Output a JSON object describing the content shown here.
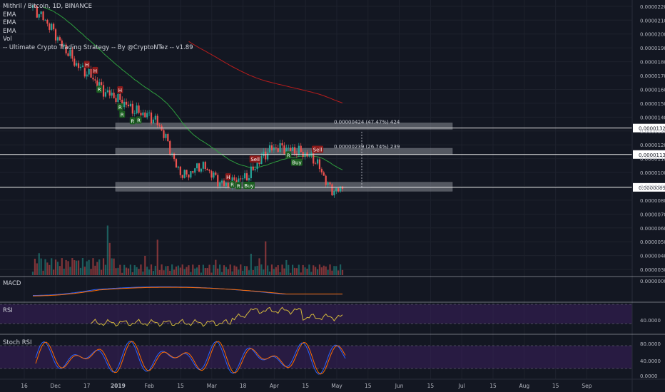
{
  "legend": {
    "title": "Mithril / Bitcoin, 1D, BINANCE",
    "ema1": "EMA",
    "ema2": "EMA",
    "ema3": "EMA",
    "vol": "Vol",
    "strategy": "-- Ultimate Crypto Trading Strategy -- By @CryptoNTez -- v1.89"
  },
  "panes": {
    "macd": "MACD",
    "rsi": "RSI",
    "stoch": "Stoch RSI"
  },
  "colors": {
    "background": "#131722",
    "up": "#26a69a",
    "down": "#ef5350",
    "ema_fast": "#2e9e3e",
    "ema_slow": "#b71c1c",
    "macd": "#2962ff",
    "signal": "#ff6d00",
    "rsi": "#d4b93c",
    "band": "#3b1f5c",
    "zone": "#9598a1"
  },
  "chart_data": {
    "type": "candlestick",
    "title": "Mithril / Bitcoin, 1D, BINANCE",
    "x_ticks": [
      "16",
      "Dec",
      "17",
      "2019",
      "Feb",
      "15",
      "Mar",
      "18",
      "Apr",
      "15",
      "May",
      "15",
      "Jun",
      "15",
      "Jul",
      "15",
      "Aug",
      "15",
      "Sep"
    ],
    "y_ticks": [
      "0.00000300",
      "0.00000400",
      "0.00000500",
      "0.00000600",
      "0.00000700",
      "0.00000800",
      "0.00000900",
      "0.00001000",
      "0.00001100",
      "0.00001200",
      "0.00001300",
      "0.00001400",
      "0.00001500",
      "0.00001600",
      "0.00001700",
      "0.00001800",
      "0.00001900",
      "0.00002000",
      "0.00002100",
      "0.00002200"
    ],
    "ylim": [
      2.8e-06,
      2.23e-05
    ],
    "price_levels": [
      "0.00001321",
      "0.00001130",
      "0.00000893"
    ],
    "zones": [
      {
        "low": 8.65e-06,
        "high": 9.3e-06
      },
      {
        "low": 1.13e-05,
        "high": 1.175e-05
      },
      {
        "low": 1.312e-05,
        "high": 1.358e-05
      }
    ],
    "measurements": [
      "0.00000424 (47.47%) 424",
      "0.00000239 (26.74%) 239"
    ],
    "signals": [
      {
        "label": "H",
        "type": "H"
      },
      {
        "label": "H",
        "type": "H"
      },
      {
        "label": "R",
        "type": "R"
      },
      {
        "label": "R",
        "type": "R"
      },
      {
        "label": "H",
        "type": "H"
      },
      {
        "label": "R",
        "type": "R"
      },
      {
        "label": "R",
        "type": "R"
      },
      {
        "label": "R",
        "type": "R"
      },
      {
        "label": "H",
        "type": "H"
      },
      {
        "label": "R",
        "type": "R"
      },
      {
        "label": "R",
        "type": "R"
      },
      {
        "label": "Buy",
        "type": "Buy"
      },
      {
        "label": "Sell",
        "type": "Sell"
      },
      {
        "label": "R",
        "type": "R"
      },
      {
        "label": "Buy",
        "type": "Buy"
      },
      {
        "label": "Sell",
        "type": "Sell"
      }
    ],
    "macd_ticks": [
      "0.0000000"
    ],
    "rsi_ticks": [
      "40.0000"
    ],
    "stoch_ticks": [
      "80.0000",
      "40.0000",
      "0.0000"
    ],
    "close_path": [
      2.19e-05,
      2.14e-05,
      2.08e-05,
      2.01e-05,
      1.92e-05,
      1.86e-05,
      1.78e-05,
      1.74e-05,
      1.7e-05,
      1.64e-05,
      1.58e-05,
      1.56e-05,
      1.52e-05,
      1.49e-05,
      1.45e-05,
      1.43e-05,
      1.41e-05,
      1.38e-05,
      1.3e-05,
      1.18e-05,
      1.03e-05,
      9.75e-06,
      1e-05,
      1.045e-05,
      1.035e-05,
      9.8e-06,
      9.25e-06,
      9.05e-06,
      9.35e-06,
      9.55e-06,
      9.8e-06,
      1.05e-05,
      1.12e-05,
      1.17e-05,
      1.18e-05,
      1.175e-05,
      1.16e-05,
      1.15e-05,
      1.13e-05,
      1.1e-05,
      1.02e-05,
      9e-06,
      8.6e-06,
      8.93e-06
    ]
  }
}
